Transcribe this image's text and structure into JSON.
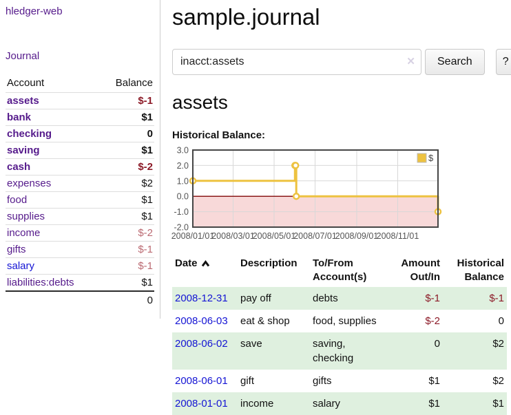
{
  "sidebar": {
    "app_title": "hledger-web",
    "journal_label": "Journal",
    "accounts": {
      "account_header": "Account",
      "balance_header": "Balance",
      "rows": [
        {
          "name": "assets",
          "balance": "$-1"
        },
        {
          "name": "bank",
          "balance": "$1"
        },
        {
          "name": "checking",
          "balance": "0"
        },
        {
          "name": "saving",
          "balance": "$1"
        },
        {
          "name": "cash",
          "balance": "$-2"
        },
        {
          "name": "expenses",
          "balance": "$2"
        },
        {
          "name": "food",
          "balance": "$1"
        },
        {
          "name": "supplies",
          "balance": "$1"
        },
        {
          "name": "income",
          "balance": "$-2"
        },
        {
          "name": "gifts",
          "balance": "$-1"
        },
        {
          "name": "salary",
          "balance": "$-1"
        },
        {
          "name": "liabilities:debts",
          "balance": "$1"
        }
      ],
      "total": "0"
    }
  },
  "main": {
    "title": "sample.journal",
    "search": {
      "value": "inacct:assets",
      "clear_icon": "✕",
      "button_label": "Search",
      "help_label": "?"
    },
    "account_heading": "assets",
    "chart_label": "Historical Balance:"
  },
  "chart_data": {
    "type": "line",
    "title": "Historical Balance",
    "step": "after",
    "xlim": [
      "2008-01-01",
      "2008-12-31"
    ],
    "ylim": [
      -2,
      3
    ],
    "yticks": [
      {
        "v": 3,
        "label": "3.0"
      },
      {
        "v": 2,
        "label": "2.0"
      },
      {
        "v": 1,
        "label": "1.0"
      },
      {
        "v": 0,
        "label": "0.0"
      },
      {
        "v": -1,
        "label": "-1.0"
      },
      {
        "v": -2,
        "label": "-2.0"
      }
    ],
    "xticks": [
      {
        "date": "2008-01-01",
        "label": "2008/01/01"
      },
      {
        "date": "2008-03-01",
        "label": "2008/03/01"
      },
      {
        "date": "2008-05-01",
        "label": "2008/05/01"
      },
      {
        "date": "2008-07-01",
        "label": "2008/07/01"
      },
      {
        "date": "2008-09-01",
        "label": "2008/09/01"
      },
      {
        "date": "2008-11-01",
        "label": "2008/11/01"
      }
    ],
    "series": [
      {
        "name": "$",
        "color": "#edc240",
        "points": [
          [
            "2008-01-01",
            1
          ],
          [
            "2008-06-01",
            2
          ],
          [
            "2008-06-02",
            2
          ],
          [
            "2008-06-03",
            0
          ],
          [
            "2008-12-31",
            -1
          ]
        ]
      }
    ],
    "legend": {
      "entries": [
        "$"
      ],
      "position": "top-right"
    },
    "grid": true,
    "zero_line_color": "#8b1a1a",
    "negative_region_color": "#f8d9d9",
    "grid_color": "#d8d8d8",
    "border_color": "#454545"
  },
  "transactions": {
    "headers": {
      "date": "Date",
      "description": "Description",
      "tofrom": "To/From Account(s)",
      "amount": "Amount Out/In",
      "balance": "Historical Balance"
    },
    "rows": [
      {
        "date": "2008-12-31",
        "description": "pay off",
        "tofrom": "debts",
        "amount": "$-1",
        "balance": "$-1"
      },
      {
        "date": "2008-06-03",
        "description": "eat & shop",
        "tofrom": "food, supplies",
        "amount": "$-2",
        "balance": "0"
      },
      {
        "date": "2008-06-02",
        "description": "save",
        "tofrom": "saving, checking",
        "amount": "0",
        "balance": "$2"
      },
      {
        "date": "2008-06-01",
        "description": "gift",
        "tofrom": "gifts",
        "amount": "$1",
        "balance": "$2"
      },
      {
        "date": "2008-01-01",
        "description": "income",
        "tofrom": "salary",
        "amount": "$1",
        "balance": "$1"
      }
    ]
  }
}
